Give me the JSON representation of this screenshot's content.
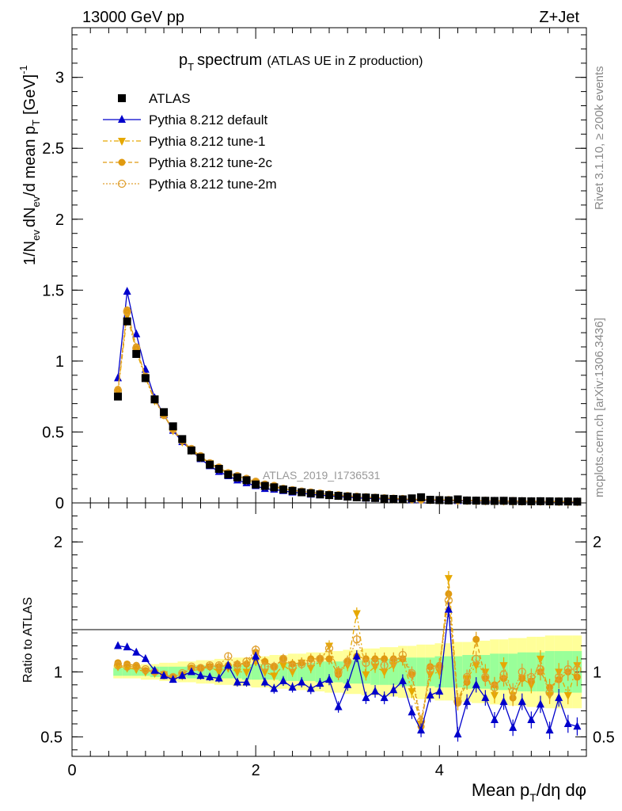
{
  "header": {
    "energy_label": "13000 GeV pp",
    "process_label": "Z+Jet",
    "title_main": "p",
    "title_sub": "T",
    "title_word": "spectrum",
    "title_detail": "(ATLAS UE in Z production)",
    "analysis_id": "ATLAS_2019_I1736531",
    "rivet_label": "Rivet 3.1.10, ≥ 200k events",
    "mcplots_label": "mcplots.cern.ch [arXiv:1306.3436]"
  },
  "axes": {
    "ylabel_main": "1/N",
    "ylabel_ev": "ev",
    "ylabel_mid": "dN",
    "ylabel_ev2": "ev",
    "ylabel_mean": "/d mean p",
    "ylabel_T": "T",
    "ylabel_unit": "[GeV]",
    "ylabel_exp": "-1",
    "ratio_ylabel": "Ratio to ATLAS",
    "xlabel_main": "Mean p",
    "xlabel_T": "T",
    "xlabel_rest": "/dη dφ"
  },
  "legend": [
    {
      "label": "ATLAS",
      "color": "#000000",
      "marker": "square",
      "style": "none"
    },
    {
      "label": "Pythia 8.212 default",
      "color": "#0000cc",
      "marker": "triangle-up",
      "style": "solid"
    },
    {
      "label": "Pythia 8.212 tune-1",
      "color": "#e6a800",
      "marker": "triangle-down",
      "style": "dashdot"
    },
    {
      "label": "Pythia 8.212 tune-2c",
      "color": "#e09a10",
      "marker": "circle",
      "style": "dashed"
    },
    {
      "label": "Pythia 8.212 tune-2m",
      "color": "#e0a030",
      "marker": "circle-open",
      "style": "dotted"
    }
  ],
  "chart_data": {
    "type": "scatter",
    "main": {
      "xlim": [
        0,
        5.6
      ],
      "ylim": [
        0,
        3.35
      ],
      "yticks": [
        "0",
        "0.5",
        "1",
        "1.5",
        "2",
        "2.5",
        "3"
      ],
      "ytick_values": [
        0,
        0.5,
        1,
        1.5,
        2,
        2.5,
        3
      ],
      "x": [
        0.5,
        0.6,
        0.7,
        0.8,
        0.9,
        1.0,
        1.1,
        1.2,
        1.3,
        1.4,
        1.5,
        1.6,
        1.7,
        1.8,
        1.9,
        2.0,
        2.1,
        2.2,
        2.3,
        2.4,
        2.5,
        2.6,
        2.7,
        2.8,
        2.9,
        3.0,
        3.1,
        3.2,
        3.3,
        3.4,
        3.5,
        3.6,
        3.7,
        3.8,
        3.9,
        4.0,
        4.1,
        4.2,
        4.3,
        4.4,
        4.5,
        4.6,
        4.7,
        4.8,
        4.9,
        5.0,
        5.1,
        5.2,
        5.3,
        5.4,
        5.5
      ],
      "series": [
        {
          "name": "ATLAS",
          "values": [
            0.75,
            1.28,
            1.05,
            0.88,
            0.73,
            0.64,
            0.54,
            0.45,
            0.37,
            0.32,
            0.27,
            0.24,
            0.2,
            0.18,
            0.16,
            0.13,
            0.12,
            0.11,
            0.095,
            0.085,
            0.075,
            0.068,
            0.06,
            0.055,
            0.05,
            0.045,
            0.04,
            0.038,
            0.035,
            0.03,
            0.028,
            0.025,
            0.032,
            0.04,
            0.022,
            0.02,
            0.018,
            0.025,
            0.017,
            0.016,
            0.015,
            0.014,
            0.015,
            0.013,
            0.012,
            0.011,
            0.012,
            0.011,
            0.01,
            0.01,
            0.009
          ]
        },
        {
          "name": "Pythia 8.212 default",
          "values": [
            0.88,
            1.49,
            1.19,
            0.94,
            0.74,
            0.62,
            0.51,
            0.43,
            0.37,
            0.31,
            0.26,
            0.22,
            0.19,
            0.16,
            0.14,
            0.12,
            0.1,
            0.095,
            0.085,
            0.075,
            0.07,
            0.06,
            0.055,
            0.05,
            0.045,
            0.04,
            0.036,
            0.032,
            0.03,
            0.026,
            0.024,
            0.022,
            0.021,
            0.02,
            0.018,
            0.017,
            0.016,
            0.015,
            0.014,
            0.013,
            0.012,
            0.011,
            0.011,
            0.01,
            0.01,
            0.009,
            0.009,
            0.008,
            0.008,
            0.007,
            0.007
          ]
        },
        {
          "name": "Pythia 8.212 tune-1",
          "values": [
            0.78,
            1.32,
            1.07,
            0.88,
            0.72,
            0.62,
            0.51,
            0.43,
            0.37,
            0.32,
            0.28,
            0.24,
            0.21,
            0.18,
            0.16,
            0.14,
            0.12,
            0.11,
            0.1,
            0.09,
            0.08,
            0.07,
            0.065,
            0.058,
            0.052,
            0.047,
            0.043,
            0.039,
            0.036,
            0.032,
            0.03,
            0.027,
            0.025,
            0.024,
            0.022,
            0.021,
            0.02,
            0.018,
            0.017,
            0.016,
            0.015,
            0.014,
            0.013,
            0.012,
            0.012,
            0.011,
            0.011,
            0.01,
            0.01,
            0.009,
            0.009
          ]
        },
        {
          "name": "Pythia 8.212 tune-2c",
          "values": [
            0.8,
            1.36,
            1.1,
            0.89,
            0.73,
            0.62,
            0.52,
            0.44,
            0.38,
            0.33,
            0.28,
            0.25,
            0.21,
            0.19,
            0.17,
            0.15,
            0.13,
            0.12,
            0.1,
            0.09,
            0.08,
            0.075,
            0.067,
            0.06,
            0.055,
            0.05,
            0.045,
            0.041,
            0.038,
            0.034,
            0.031,
            0.028,
            0.026,
            0.024,
            0.023,
            0.021,
            0.02,
            0.019,
            0.018,
            0.016,
            0.015,
            0.015,
            0.014,
            0.013,
            0.012,
            0.011,
            0.011,
            0.01,
            0.01,
            0.009,
            0.009
          ]
        },
        {
          "name": "Pythia 8.212 tune-2m",
          "values": [
            0.79,
            1.35,
            1.09,
            0.89,
            0.73,
            0.62,
            0.52,
            0.44,
            0.38,
            0.33,
            0.28,
            0.25,
            0.21,
            0.19,
            0.17,
            0.15,
            0.13,
            0.12,
            0.1,
            0.09,
            0.08,
            0.074,
            0.066,
            0.06,
            0.054,
            0.049,
            0.044,
            0.04,
            0.037,
            0.033,
            0.03,
            0.028,
            0.026,
            0.024,
            0.022,
            0.021,
            0.02,
            0.019,
            0.017,
            0.016,
            0.015,
            0.014,
            0.014,
            0.013,
            0.012,
            0.011,
            0.011,
            0.01,
            0.01,
            0.009,
            0.009
          ]
        }
      ]
    },
    "ratio": {
      "xlim": [
        0,
        5.6
      ],
      "ylim": [
        0.35,
        2.3
      ],
      "yticks": [
        "0.5",
        "1",
        "2"
      ],
      "ytick_values": [
        0.5,
        1,
        2
      ],
      "xticks": [
        "0",
        "2",
        "4"
      ],
      "xtick_values": [
        0,
        2,
        4
      ],
      "x": [
        0.5,
        0.6,
        0.7,
        0.8,
        0.9,
        1.0,
        1.1,
        1.2,
        1.3,
        1.4,
        1.5,
        1.6,
        1.7,
        1.8,
        1.9,
        2.0,
        2.1,
        2.2,
        2.3,
        2.4,
        2.5,
        2.6,
        2.7,
        2.8,
        2.9,
        3.0,
        3.1,
        3.2,
        3.3,
        3.4,
        3.5,
        3.6,
        3.7,
        3.8,
        3.9,
        4.0,
        4.1,
        4.2,
        4.3,
        4.4,
        4.5,
        4.6,
        4.7,
        4.8,
        4.9,
        5.0,
        5.1,
        5.2,
        5.3,
        5.4,
        5.5
      ],
      "band_inner": [
        0.03,
        0.03,
        0.03,
        0.03,
        0.04,
        0.04,
        0.04,
        0.04,
        0.05,
        0.05,
        0.05,
        0.05,
        0.05,
        0.05,
        0.06,
        0.06,
        0.06,
        0.06,
        0.07,
        0.07,
        0.07,
        0.07,
        0.08,
        0.08,
        0.08,
        0.09,
        0.09,
        0.09,
        0.1,
        0.1,
        0.1,
        0.11,
        0.11,
        0.11,
        0.11,
        0.12,
        0.12,
        0.12,
        0.13,
        0.13,
        0.13,
        0.14,
        0.14,
        0.14,
        0.15,
        0.15,
        0.15,
        0.16,
        0.16,
        0.16,
        0.16
      ],
      "band_outer": [
        0.05,
        0.05,
        0.05,
        0.06,
        0.06,
        0.07,
        0.07,
        0.08,
        0.08,
        0.09,
        0.09,
        0.1,
        0.1,
        0.11,
        0.11,
        0.12,
        0.12,
        0.13,
        0.13,
        0.14,
        0.14,
        0.15,
        0.15,
        0.16,
        0.16,
        0.17,
        0.17,
        0.18,
        0.18,
        0.19,
        0.19,
        0.2,
        0.2,
        0.21,
        0.21,
        0.22,
        0.22,
        0.23,
        0.23,
        0.24,
        0.24,
        0.25,
        0.25,
        0.26,
        0.26,
        0.27,
        0.27,
        0.28,
        0.28,
        0.28,
        0.28
      ],
      "series": [
        {
          "name": "Pythia 8.212 default",
          "values": [
            1.2,
            1.19,
            1.15,
            1.1,
            1.01,
            0.97,
            0.94,
            0.97,
            1.0,
            0.97,
            0.96,
            0.95,
            1.05,
            0.92,
            0.92,
            1.12,
            0.92,
            0.87,
            0.93,
            0.88,
            0.92,
            0.87,
            0.91,
            0.94,
            0.73,
            0.9,
            1.12,
            0.8,
            0.85,
            0.8,
            0.86,
            0.93,
            0.69,
            0.55,
            0.82,
            0.85,
            1.48,
            0.52,
            0.77,
            0.9,
            0.8,
            0.63,
            0.77,
            0.57,
            0.77,
            0.63,
            0.75,
            0.55,
            0.8,
            0.6,
            0.58
          ]
        },
        {
          "name": "Pythia 8.212 tune-1",
          "values": [
            1.04,
            1.03,
            1.02,
            1.0,
            0.99,
            0.98,
            0.95,
            0.97,
            1.01,
            1.02,
            1.04,
            1.0,
            1.03,
            1.0,
            1.0,
            1.08,
            1.0,
            0.97,
            1.05,
            1.0,
            1.07,
            1.03,
            1.08,
            1.2,
            1.0,
            1.05,
            1.45,
            0.98,
            1.04,
            1.0,
            1.05,
            1.1,
            0.85,
            0.6,
            0.98,
            1.0,
            1.72,
            0.78,
            0.95,
            1.05,
            1.0,
            0.82,
            1.05,
            0.82,
            0.95,
            0.9,
            1.1,
            0.82,
            1.0,
            0.82,
            1.05
          ]
        },
        {
          "name": "Pythia 8.212 tune-2c",
          "values": [
            1.07,
            1.06,
            1.05,
            1.01,
            1.0,
            0.97,
            0.96,
            0.98,
            1.03,
            1.03,
            1.04,
            1.04,
            1.05,
            1.06,
            1.06,
            1.15,
            1.08,
            1.04,
            1.1,
            1.06,
            1.07,
            1.1,
            1.1,
            1.1,
            0.98,
            1.08,
            1.12,
            1.1,
            1.1,
            1.1,
            1.1,
            1.1,
            0.98,
            0.58,
            1.04,
            1.05,
            1.6,
            0.76,
            0.92,
            1.25,
            0.95,
            0.9,
            0.95,
            0.8,
            0.95,
            0.93,
            1.0,
            0.88,
            0.94,
            1.0,
            0.96
          ]
        },
        {
          "name": "Pythia 8.212 tune-2m",
          "values": [
            1.05,
            1.04,
            1.04,
            1.02,
            1.0,
            0.98,
            0.96,
            0.99,
            1.04,
            1.03,
            1.05,
            1.05,
            1.12,
            1.05,
            1.08,
            1.17,
            1.04,
            1.04,
            1.1,
            1.04,
            1.06,
            1.07,
            1.1,
            1.18,
            1.0,
            1.08,
            1.25,
            1.07,
            1.07,
            1.05,
            1.08,
            1.13,
            0.99,
            0.62,
            1.02,
            1.04,
            1.55,
            0.77,
            0.96,
            1.1,
            0.96,
            0.88,
            0.98,
            0.85,
            1.0,
            0.96,
            1.02,
            0.84,
            0.96,
            1.02,
            1.02
          ]
        }
      ]
    }
  }
}
